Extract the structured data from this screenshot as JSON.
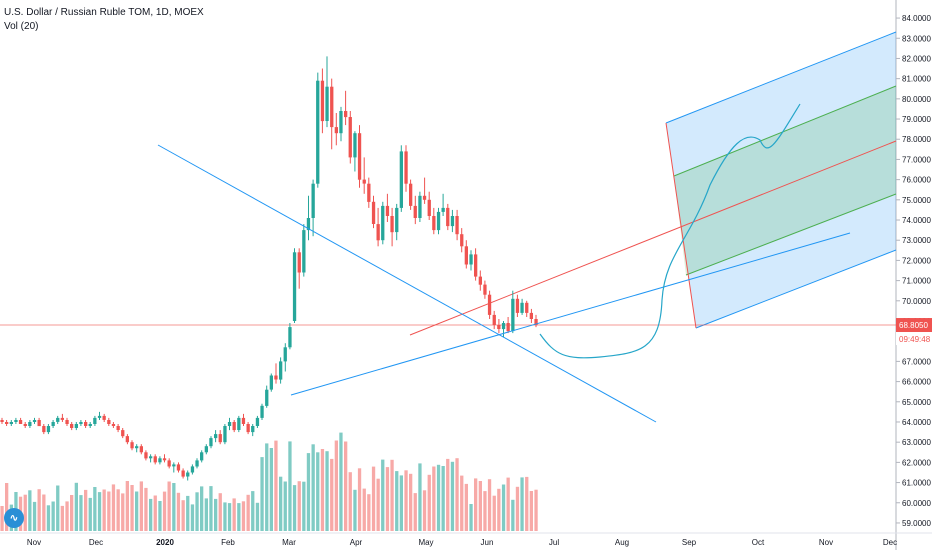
{
  "header": {
    "title": "U.S. Dollar / Russian Ruble TOM, 1D, MOEX",
    "volume_label": "Vol (20)"
  },
  "price_badge": {
    "value": "68.8050",
    "countdown": "09:49:48",
    "color": "#ef5350"
  },
  "colors": {
    "up": "#26a69a",
    "down": "#ef5350",
    "up_vol": "#80cbc4",
    "down_vol": "#f7a9a7",
    "line_blue": "#2196f3",
    "line_red": "#ef5350",
    "fork_green": "#4caf50"
  },
  "chart_data": {
    "type": "candlestick",
    "title": "U.S. Dollar / Russian Ruble TOM, 1D, MOEX",
    "y_axis": {
      "side": "right",
      "ylim": [
        58.8,
        84.3
      ],
      "ticks": [
        59,
        60,
        61,
        62,
        63,
        64,
        65,
        66,
        67,
        68,
        69,
        70,
        71,
        72,
        73,
        74,
        75,
        76,
        77,
        78,
        79,
        80,
        81,
        82,
        83,
        84
      ],
      "tick_labels": [
        "59.0000",
        "60.0000",
        "61.0000",
        "62.0000",
        "63.0000",
        "64.0000",
        "65.0000",
        "66.0000",
        "67.0000",
        "68.0000",
        "69.0000",
        "70.0000",
        "71.0000",
        "72.0000",
        "73.0000",
        "74.0000",
        "75.0000",
        "76.0000",
        "77.0000",
        "78.0000",
        "79.0000",
        "80.0000",
        "81.0000",
        "82.0000",
        "83.0000",
        "84.0000"
      ]
    },
    "x_axis": {
      "labels": [
        "Nov",
        "Dec",
        "2020",
        "Feb",
        "Mar",
        "Apr",
        "May",
        "Jun",
        "Jul",
        "Aug",
        "Sep",
        "Oct",
        "Nov",
        "Dec"
      ],
      "label_x": [
        34,
        96,
        165,
        228,
        289,
        356,
        426,
        487,
        554,
        622,
        689,
        758,
        826,
        890
      ]
    },
    "ohlc": [
      [
        64.1,
        64.2,
        63.9,
        64.0
      ],
      [
        64.0,
        64.1,
        63.8,
        63.9
      ],
      [
        63.9,
        64.1,
        63.8,
        64.0
      ],
      [
        64.0,
        64.2,
        63.9,
        64.1
      ],
      [
        64.1,
        64.2,
        63.9,
        63.9
      ],
      [
        63.9,
        64.0,
        63.7,
        63.8
      ],
      [
        63.8,
        64.1,
        63.7,
        64.0
      ],
      [
        64.0,
        64.2,
        63.9,
        64.1
      ],
      [
        64.1,
        64.2,
        63.8,
        63.8
      ],
      [
        63.8,
        63.9,
        63.4,
        63.5
      ],
      [
        63.5,
        63.9,
        63.4,
        63.8
      ],
      [
        63.8,
        64.1,
        63.7,
        64.0
      ],
      [
        64.0,
        64.3,
        63.9,
        64.2
      ],
      [
        64.2,
        64.4,
        64.0,
        64.1
      ],
      [
        64.1,
        64.2,
        63.8,
        63.9
      ],
      [
        63.9,
        64.0,
        63.6,
        63.7
      ],
      [
        63.7,
        64.0,
        63.6,
        63.9
      ],
      [
        63.9,
        64.1,
        63.8,
        64.0
      ],
      [
        64.0,
        64.1,
        63.7,
        63.8
      ],
      [
        63.8,
        64.0,
        63.7,
        63.9
      ],
      [
        63.9,
        64.3,
        63.8,
        64.2
      ],
      [
        64.2,
        64.5,
        64.1,
        64.3
      ],
      [
        64.3,
        64.4,
        64.0,
        64.1
      ],
      [
        64.1,
        64.2,
        63.8,
        63.9
      ],
      [
        63.9,
        64.0,
        63.7,
        63.8
      ],
      [
        63.8,
        63.9,
        63.5,
        63.6
      ],
      [
        63.6,
        63.7,
        63.2,
        63.3
      ],
      [
        63.3,
        63.4,
        62.9,
        63.0
      ],
      [
        63.0,
        63.1,
        62.6,
        62.7
      ],
      [
        62.7,
        62.9,
        62.5,
        62.8
      ],
      [
        62.8,
        62.9,
        62.4,
        62.5
      ],
      [
        62.5,
        62.6,
        62.1,
        62.2
      ],
      [
        62.2,
        62.4,
        62.0,
        62.3
      ],
      [
        62.3,
        62.4,
        61.9,
        62.0
      ],
      [
        62.0,
        62.3,
        61.9,
        62.2
      ],
      [
        62.2,
        62.4,
        62.0,
        62.1
      ],
      [
        62.1,
        62.2,
        61.7,
        61.8
      ],
      [
        61.8,
        62.0,
        61.5,
        61.9
      ],
      [
        61.9,
        62.0,
        61.5,
        61.6
      ],
      [
        61.6,
        61.7,
        61.2,
        61.3
      ],
      [
        61.3,
        61.6,
        61.1,
        61.5
      ],
      [
        61.5,
        61.9,
        61.4,
        61.8
      ],
      [
        61.8,
        62.2,
        61.7,
        62.1
      ],
      [
        62.1,
        62.6,
        62.0,
        62.5
      ],
      [
        62.5,
        62.9,
        62.4,
        62.8
      ],
      [
        62.8,
        63.3,
        62.7,
        63.2
      ],
      [
        63.2,
        63.6,
        63.0,
        63.4
      ],
      [
        63.4,
        63.6,
        62.9,
        63.0
      ],
      [
        63.0,
        63.9,
        62.9,
        63.8
      ],
      [
        63.8,
        64.2,
        63.6,
        64.0
      ],
      [
        64.0,
        64.1,
        63.5,
        63.6
      ],
      [
        63.6,
        64.3,
        63.5,
        64.2
      ],
      [
        64.2,
        64.4,
        63.8,
        63.9
      ],
      [
        63.9,
        64.0,
        63.4,
        63.5
      ],
      [
        63.5,
        63.9,
        63.3,
        63.8
      ],
      [
        63.8,
        64.3,
        63.7,
        64.2
      ],
      [
        64.2,
        64.9,
        64.1,
        64.8
      ],
      [
        64.8,
        65.8,
        64.7,
        65.6
      ],
      [
        65.6,
        66.4,
        65.5,
        66.3
      ],
      [
        66.3,
        66.9,
        65.9,
        66.1
      ],
      [
        66.1,
        67.2,
        65.9,
        67.0
      ],
      [
        67.0,
        67.9,
        66.5,
        67.7
      ],
      [
        67.7,
        68.9,
        67.6,
        68.7
      ],
      [
        69.0,
        72.6,
        68.9,
        72.4
      ],
      [
        72.4,
        72.6,
        70.6,
        71.4
      ],
      [
        71.4,
        73.8,
        71.2,
        73.5
      ],
      [
        73.5,
        75.2,
        73.0,
        74.1
      ],
      [
        74.1,
        76.0,
        73.2,
        75.8
      ],
      [
        75.8,
        81.3,
        75.6,
        80.9
      ],
      [
        80.9,
        81.5,
        78.3,
        78.9
      ],
      [
        78.9,
        82.1,
        78.6,
        80.6
      ],
      [
        80.6,
        81.0,
        77.5,
        78.6
      ],
      [
        78.6,
        79.3,
        77.7,
        78.3
      ],
      [
        78.3,
        79.6,
        77.9,
        79.4
      ],
      [
        79.4,
        80.4,
        78.7,
        79.1
      ],
      [
        79.1,
        79.4,
        76.8,
        77.1
      ],
      [
        77.1,
        78.4,
        76.4,
        78.3
      ],
      [
        78.3,
        78.7,
        75.6,
        76.0
      ],
      [
        76.0,
        77.1,
        75.3,
        75.8
      ],
      [
        75.8,
        76.1,
        74.6,
        74.9
      ],
      [
        74.9,
        75.2,
        73.6,
        73.8
      ],
      [
        73.8,
        74.6,
        72.7,
        73.0
      ],
      [
        73.0,
        74.9,
        72.8,
        74.7
      ],
      [
        74.7,
        75.3,
        73.9,
        74.2
      ],
      [
        74.2,
        74.6,
        72.7,
        73.4
      ],
      [
        73.4,
        74.8,
        73.0,
        74.6
      ],
      [
        74.6,
        77.7,
        74.4,
        77.4
      ],
      [
        77.4,
        77.7,
        75.4,
        75.8
      ],
      [
        75.8,
        76.0,
        74.5,
        74.7
      ],
      [
        74.7,
        75.2,
        73.8,
        74.1
      ],
      [
        74.1,
        75.4,
        73.9,
        75.2
      ],
      [
        75.2,
        76.1,
        74.8,
        75.0
      ],
      [
        75.0,
        75.4,
        74.0,
        74.2
      ],
      [
        74.2,
        74.6,
        73.3,
        73.5
      ],
      [
        73.5,
        74.6,
        73.3,
        74.4
      ],
      [
        74.4,
        75.3,
        74.2,
        74.6
      ],
      [
        74.6,
        74.8,
        73.5,
        73.7
      ],
      [
        73.7,
        74.5,
        73.4,
        74.2
      ],
      [
        74.2,
        74.5,
        73.0,
        73.3
      ],
      [
        73.3,
        73.6,
        72.4,
        72.7
      ],
      [
        72.7,
        73.0,
        71.6,
        71.8
      ],
      [
        71.8,
        72.5,
        71.5,
        72.3
      ],
      [
        72.3,
        72.6,
        71.0,
        71.2
      ],
      [
        71.2,
        71.5,
        70.5,
        70.8
      ],
      [
        70.8,
        71.0,
        70.1,
        70.3
      ],
      [
        70.3,
        70.5,
        69.1,
        69.3
      ],
      [
        69.3,
        69.5,
        68.6,
        68.8
      ],
      [
        68.8,
        69.1,
        68.4,
        68.6
      ],
      [
        68.6,
        69.0,
        68.2,
        68.9
      ],
      [
        68.9,
        69.2,
        68.4,
        68.5
      ],
      [
        68.5,
        70.5,
        68.4,
        70.1
      ],
      [
        70.1,
        70.3,
        69.2,
        69.4
      ],
      [
        69.4,
        70.1,
        69.3,
        69.9
      ],
      [
        69.9,
        70.0,
        69.2,
        69.4
      ],
      [
        69.4,
        69.6,
        68.9,
        69.1
      ],
      [
        69.1,
        69.3,
        68.7,
        68.8
      ]
    ],
    "volume_bars": 115,
    "drawings": {
      "descending_trendline": {
        "from": [
          "2019-12 start",
          77.6
        ],
        "to": [
          "Aug",
          64.0
        ]
      },
      "ascending_trendline": {
        "from": [
          "Mar",
          65.4
        ],
        "to": [
          "Oct",
          73.3
        ]
      },
      "pitchfork_median": {
        "from": [
          "Apr",
          67.8
        ],
        "to": [
          "Dec",
          77.8
        ]
      },
      "projection_path": "hand-drawn forecast curve",
      "current_price_line": 68.8
    }
  }
}
